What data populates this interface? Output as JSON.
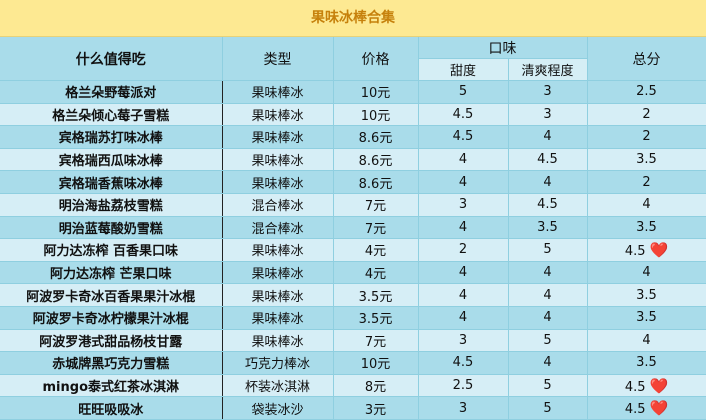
{
  "title": "果味冰棒合集",
  "headers": {
    "name": "什么值得吃",
    "type": "类型",
    "price": "价格",
    "taste": "口味",
    "sweetness": "甜度",
    "freshness": "清爽程度",
    "total": "总分"
  },
  "colors": {
    "title_bg": "#fde992",
    "title_text": "#c6810c",
    "row_dark": "#a9dcea",
    "row_light": "#d6eef6",
    "heart": "#e0151b"
  },
  "rows": [
    {
      "name": "格兰朵野莓派对",
      "type": "果味棒冰",
      "price": "10元",
      "sweetness": "5",
      "freshness": "3",
      "total": "2.5",
      "heart": false
    },
    {
      "name": "格兰朵倾心莓子雪糕",
      "type": "果味棒冰",
      "price": "10元",
      "sweetness": "4.5",
      "freshness": "3",
      "total": "2",
      "heart": false
    },
    {
      "name": "宾格瑞苏打味冰棒",
      "type": "果味棒冰",
      "price": "8.6元",
      "sweetness": "4.5",
      "freshness": "4",
      "total": "2",
      "heart": false
    },
    {
      "name": "宾格瑞西瓜味冰棒",
      "type": "果味棒冰",
      "price": "8.6元",
      "sweetness": "4",
      "freshness": "4.5",
      "total": "3.5",
      "heart": false
    },
    {
      "name": "宾格瑞香蕉味冰棒",
      "type": "果味棒冰",
      "price": "8.6元",
      "sweetness": "4",
      "freshness": "4",
      "total": "2",
      "heart": false
    },
    {
      "name": "明治海盐荔枝雪糕",
      "type": "混合棒冰",
      "price": "7元",
      "sweetness": "3",
      "freshness": "4.5",
      "total": "4",
      "heart": false
    },
    {
      "name": "明治蓝莓酸奶雪糕",
      "type": "混合棒冰",
      "price": "7元",
      "sweetness": "4",
      "freshness": "3.5",
      "total": "3.5",
      "heart": false
    },
    {
      "name": "阿力达冻榨 百香果口味",
      "type": "果味棒冰",
      "price": "4元",
      "sweetness": "2",
      "freshness": "5",
      "total": "4.5",
      "heart": true
    },
    {
      "name": "阿力达冻榨 芒果口味",
      "type": "果味棒冰",
      "price": "4元",
      "sweetness": "4",
      "freshness": "4",
      "total": "4",
      "heart": false
    },
    {
      "name": "阿波罗卡奇冰百香果果汁冰棍",
      "type": "果味棒冰",
      "price": "3.5元",
      "sweetness": "4",
      "freshness": "4",
      "total": "3.5",
      "heart": false
    },
    {
      "name": "阿波罗卡奇冰柠檬果汁冰棍",
      "type": "果味棒冰",
      "price": "3.5元",
      "sweetness": "4",
      "freshness": "4",
      "total": "3.5",
      "heart": false
    },
    {
      "name": "阿波罗港式甜品杨枝甘露",
      "type": "果味棒冰",
      "price": "7元",
      "sweetness": "3",
      "freshness": "5",
      "total": "4",
      "heart": false
    },
    {
      "name": "赤城牌黑巧克力雪糕",
      "type": "巧克力棒冰",
      "price": "10元",
      "sweetness": "4.5",
      "freshness": "4",
      "total": "3.5",
      "heart": false
    },
    {
      "name": "mingo泰式红茶冰淇淋",
      "type": "杯装冰淇淋",
      "price": "8元",
      "sweetness": "2.5",
      "freshness": "5",
      "total": "4.5",
      "heart": true
    },
    {
      "name": "旺旺吸吸冰",
      "type": "袋装冰沙",
      "price": "3元",
      "sweetness": "3",
      "freshness": "5",
      "total": "4.5",
      "heart": true
    }
  ]
}
